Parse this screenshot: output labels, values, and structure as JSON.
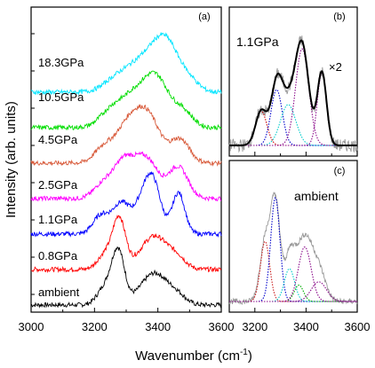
{
  "figure": {
    "ylabel": "Intensity (arb. units)",
    "xlabel": "Wavenumber (cm",
    "xlabel_sup": "-1",
    "xlabel_close": ")"
  },
  "chart_data": [
    {
      "panel": "(a)",
      "type": "line",
      "xlim": [
        3000,
        3600
      ],
      "xticks": [
        "3000",
        "3200",
        "3400",
        "3600"
      ],
      "yaxis_ticks_labeled": false,
      "series": [
        {
          "name": "ambient",
          "color": "#000000",
          "offset": 0,
          "peaks": [
            [
              3275,
              1.0,
              20
            ],
            [
              3235,
              0.35,
              25
            ],
            [
              3390,
              0.62,
              45
            ],
            [
              3465,
              0.12,
              25
            ]
          ]
        },
        {
          "name": "0.8GPa",
          "color": "#ff0000",
          "offset": 1,
          "peaks": [
            [
              3278,
              0.95,
              20
            ],
            [
              3235,
              0.3,
              25
            ],
            [
              3390,
              0.65,
              45
            ],
            [
              3465,
              0.15,
              25
            ]
          ]
        },
        {
          "name": "1.1GPa",
          "color": "#0000ff",
          "offset": 2,
          "peaks": [
            [
              3220,
              0.35,
              25
            ],
            [
              3285,
              0.6,
              28
            ],
            [
              3350,
              0.5,
              25
            ],
            [
              3385,
              0.95,
              25
            ],
            [
              3465,
              0.8,
              20
            ]
          ]
        },
        {
          "name": "2.5GPa",
          "color": "#ff00ff",
          "offset": 3,
          "peaks": [
            [
              3230,
              0.3,
              30
            ],
            [
              3290,
              0.6,
              30
            ],
            [
              3360,
              0.8,
              40
            ],
            [
              3465,
              0.6,
              30
            ]
          ]
        },
        {
          "name": "4.5GPa",
          "color": "#d85a3a",
          "offset": 4,
          "peaks": [
            [
              3230,
              0.3,
              30
            ],
            [
              3300,
              0.6,
              35
            ],
            [
              3365,
              0.95,
              40
            ],
            [
              3470,
              0.45,
              30
            ]
          ]
        },
        {
          "name": "10.5GPa",
          "color": "#00dd00",
          "offset": 5,
          "peaks": [
            [
              3250,
              0.3,
              35
            ],
            [
              3320,
              0.55,
              40
            ],
            [
              3395,
              0.95,
              40
            ],
            [
              3480,
              0.3,
              30
            ]
          ]
        },
        {
          "name": "18.3GPa",
          "color": "#00e5ff",
          "offset": 6,
          "peaks": [
            [
              3270,
              0.25,
              40
            ],
            [
              3350,
              0.55,
              45
            ],
            [
              3425,
              0.95,
              40
            ],
            [
              3500,
              0.2,
              30
            ]
          ]
        }
      ]
    },
    {
      "panel": "(b)",
      "type": "line",
      "label": "1.1GPa",
      "multiplier": "×2",
      "xlim": [
        3100,
        3600
      ],
      "xticks": [
        "3200",
        "3400",
        "3600"
      ],
      "components": [
        {
          "center": 3225,
          "amp": 0.32,
          "width": 22,
          "color": "#cc0000"
        },
        {
          "center": 3285,
          "amp": 0.52,
          "width": 22,
          "color": "#0000cc"
        },
        {
          "center": 3330,
          "amp": 0.38,
          "width": 30,
          "color": "#00cccc"
        },
        {
          "center": 3385,
          "amp": 0.9,
          "width": 26,
          "color": "#8b0a8b"
        },
        {
          "center": 3462,
          "amp": 0.68,
          "width": 18,
          "color": "#8b0a8b"
        }
      ],
      "fit_color": "#000000",
      "data_color": "#999999"
    },
    {
      "panel": "(c)",
      "type": "line",
      "label": "ambient",
      "xlim": [
        3100,
        3600
      ],
      "xticks": [
        "3200",
        "3400",
        "3600"
      ],
      "components": [
        {
          "center": 3240,
          "amp": 0.55,
          "width": 18,
          "color": "#cc2222"
        },
        {
          "center": 3280,
          "amp": 0.95,
          "width": 18,
          "color": "#0000cc"
        },
        {
          "center": 3335,
          "amp": 0.3,
          "width": 20,
          "color": "#00cccc"
        },
        {
          "center": 3372,
          "amp": 0.15,
          "width": 18,
          "color": "#00aa00"
        },
        {
          "center": 3395,
          "amp": 0.5,
          "width": 25,
          "color": "#8b0a8b"
        },
        {
          "center": 3450,
          "amp": 0.18,
          "width": 30,
          "color": "#8b0a8b"
        }
      ],
      "data_peaks": [
        [
          3240,
          0.55,
          20
        ],
        [
          3280,
          0.9,
          18
        ],
        [
          3335,
          0.35,
          20
        ],
        [
          3395,
          0.6,
          35
        ],
        [
          3455,
          0.2,
          25
        ]
      ],
      "fit_color": "#999999",
      "data_color": "#999999"
    }
  ]
}
